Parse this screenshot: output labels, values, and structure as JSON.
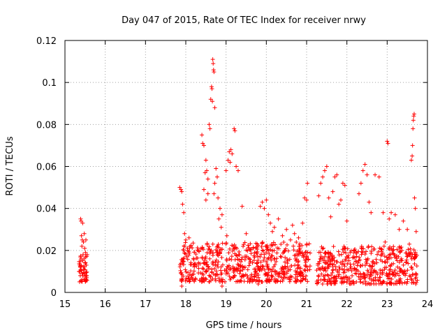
{
  "chart_data": {
    "type": "scatter",
    "title": "Day 047 of 2015, Rate Of TEC Index for receiver nrwy",
    "xlabel": "GPS time / hours",
    "ylabel": "ROTI / TECUs",
    "xlim": [
      15,
      24
    ],
    "ylim": [
      0,
      0.12
    ],
    "x_ticks": [
      15,
      16,
      17,
      18,
      19,
      20,
      21,
      22,
      23,
      24
    ],
    "x_tick_labels": [
      "15",
      "16",
      "17",
      "18",
      "19",
      "20",
      "21",
      "22",
      "23",
      "24"
    ],
    "y_ticks": [
      0,
      0.02,
      0.04,
      0.06,
      0.08,
      0.1,
      0.12
    ],
    "y_tick_labels": [
      "0",
      "0.02",
      "0.04",
      "0.06",
      "0.08",
      "0.1",
      "0.12"
    ],
    "grid": true,
    "marker": "plus",
    "color": "#ff0000",
    "series": [
      {
        "name": "ROTI",
        "points": [
          [
            15.35,
            0.01
          ],
          [
            15.37,
            0.013
          ],
          [
            15.38,
            0.008
          ],
          [
            15.39,
            0.035
          ],
          [
            15.4,
            0.034
          ],
          [
            15.4,
            0.016
          ],
          [
            15.41,
            0.027
          ],
          [
            15.42,
            0.022
          ],
          [
            15.42,
            0.006
          ],
          [
            15.43,
            0.025
          ],
          [
            15.44,
            0.033
          ],
          [
            15.45,
            0.018
          ],
          [
            15.46,
            0.024
          ],
          [
            15.47,
            0.011
          ],
          [
            15.48,
            0.028
          ],
          [
            15.49,
            0.021
          ],
          [
            15.5,
            0.009
          ],
          [
            15.51,
            0.019
          ],
          [
            15.52,
            0.025
          ],
          [
            15.53,
            0.013
          ],
          [
            15.54,
            0.007
          ],
          [
            15.55,
            0.018
          ],
          [
            15.38,
            0.012
          ],
          [
            15.44,
            0.008
          ],
          [
            15.5,
            0.014
          ],
          [
            17.85,
            0.05
          ],
          [
            17.88,
            0.049
          ],
          [
            17.9,
            0.048
          ],
          [
            17.92,
            0.042
          ],
          [
            17.95,
            0.038
          ],
          [
            17.97,
            0.028
          ],
          [
            18.0,
            0.025
          ],
          [
            18.05,
            0.02
          ],
          [
            18.08,
            0.026
          ],
          [
            18.4,
            0.075
          ],
          [
            18.42,
            0.071
          ],
          [
            18.45,
            0.07
          ],
          [
            18.48,
            0.057
          ],
          [
            18.5,
            0.063
          ],
          [
            18.52,
            0.058
          ],
          [
            18.55,
            0.054
          ],
          [
            18.58,
            0.08
          ],
          [
            18.6,
            0.078
          ],
          [
            18.62,
            0.092
          ],
          [
            18.64,
            0.098
          ],
          [
            18.65,
            0.097
          ],
          [
            18.66,
            0.091
          ],
          [
            18.67,
            0.111
          ],
          [
            18.68,
            0.109
          ],
          [
            18.69,
            0.106
          ],
          [
            18.7,
            0.105
          ],
          [
            18.72,
            0.088
          ],
          [
            18.75,
            0.059
          ],
          [
            18.78,
            0.055
          ],
          [
            18.8,
            0.045
          ],
          [
            18.85,
            0.04
          ],
          [
            18.9,
            0.037
          ],
          [
            19.0,
            0.058
          ],
          [
            19.05,
            0.063
          ],
          [
            19.08,
            0.067
          ],
          [
            19.1,
            0.062
          ],
          [
            19.12,
            0.068
          ],
          [
            19.15,
            0.066
          ],
          [
            19.2,
            0.078
          ],
          [
            19.22,
            0.077
          ],
          [
            19.25,
            0.06
          ],
          [
            19.3,
            0.058
          ],
          [
            19.4,
            0.041
          ],
          [
            19.5,
            0.028
          ],
          [
            18.45,
            0.049
          ],
          [
            18.5,
            0.044
          ],
          [
            18.55,
            0.047
          ],
          [
            18.7,
            0.047
          ],
          [
            18.72,
            0.052
          ],
          [
            18.82,
            0.035
          ],
          [
            18.88,
            0.031
          ],
          [
            19.02,
            0.027
          ],
          [
            19.85,
            0.041
          ],
          [
            19.9,
            0.043
          ],
          [
            19.95,
            0.04
          ],
          [
            20.0,
            0.044
          ],
          [
            20.05,
            0.037
          ],
          [
            20.1,
            0.033
          ],
          [
            20.15,
            0.029
          ],
          [
            20.2,
            0.031
          ],
          [
            20.3,
            0.035
          ],
          [
            20.4,
            0.027
          ],
          [
            20.5,
            0.03
          ],
          [
            20.6,
            0.025
          ],
          [
            20.7,
            0.028
          ],
          [
            20.8,
            0.026
          ],
          [
            20.9,
            0.033
          ],
          [
            20.95,
            0.045
          ],
          [
            21.0,
            0.044
          ],
          [
            21.02,
            0.052
          ],
          [
            20.65,
            0.032
          ],
          [
            21.3,
            0.046
          ],
          [
            21.35,
            0.052
          ],
          [
            21.4,
            0.055
          ],
          [
            21.45,
            0.058
          ],
          [
            21.5,
            0.06
          ],
          [
            21.55,
            0.045
          ],
          [
            21.6,
            0.036
          ],
          [
            21.65,
            0.048
          ],
          [
            21.7,
            0.055
          ],
          [
            21.75,
            0.056
          ],
          [
            21.8,
            0.042
          ],
          [
            21.85,
            0.044
          ],
          [
            21.9,
            0.052
          ],
          [
            21.95,
            0.051
          ],
          [
            22.0,
            0.034
          ],
          [
            22.3,
            0.047
          ],
          [
            22.35,
            0.052
          ],
          [
            22.4,
            0.058
          ],
          [
            22.45,
            0.061
          ],
          [
            22.5,
            0.056
          ],
          [
            22.55,
            0.043
          ],
          [
            22.6,
            0.038
          ],
          [
            22.7,
            0.056
          ],
          [
            22.8,
            0.055
          ],
          [
            22.9,
            0.038
          ],
          [
            22.95,
            0.024
          ],
          [
            23.0,
            0.072
          ],
          [
            23.02,
            0.071
          ],
          [
            23.05,
            0.035
          ],
          [
            23.1,
            0.038
          ],
          [
            23.2,
            0.037
          ],
          [
            23.3,
            0.03
          ],
          [
            23.4,
            0.034
          ],
          [
            23.5,
            0.03
          ],
          [
            23.55,
            0.023
          ],
          [
            23.6,
            0.063
          ],
          [
            23.62,
            0.065
          ],
          [
            23.63,
            0.07
          ],
          [
            23.64,
            0.078
          ],
          [
            23.65,
            0.082
          ],
          [
            23.66,
            0.084
          ],
          [
            23.67,
            0.085
          ],
          [
            23.68,
            0.045
          ],
          [
            23.7,
            0.04
          ],
          [
            23.72,
            0.029
          ],
          [
            17.9,
            0.003
          ],
          [
            18.9,
            0.003
          ],
          [
            19.8,
            0.004
          ],
          [
            22.5,
            0.004
          ],
          [
            23.3,
            0.005
          ]
        ],
        "dense_bands": [
          {
            "x_start": 17.85,
            "x_end": 21.1,
            "y_min": 0.005,
            "y_max": 0.024,
            "count": 620
          },
          {
            "x_start": 21.25,
            "x_end": 23.75,
            "y_min": 0.004,
            "y_max": 0.022,
            "count": 480
          },
          {
            "x_start": 15.35,
            "x_end": 15.55,
            "y_min": 0.005,
            "y_max": 0.018,
            "count": 40
          }
        ]
      }
    ]
  }
}
